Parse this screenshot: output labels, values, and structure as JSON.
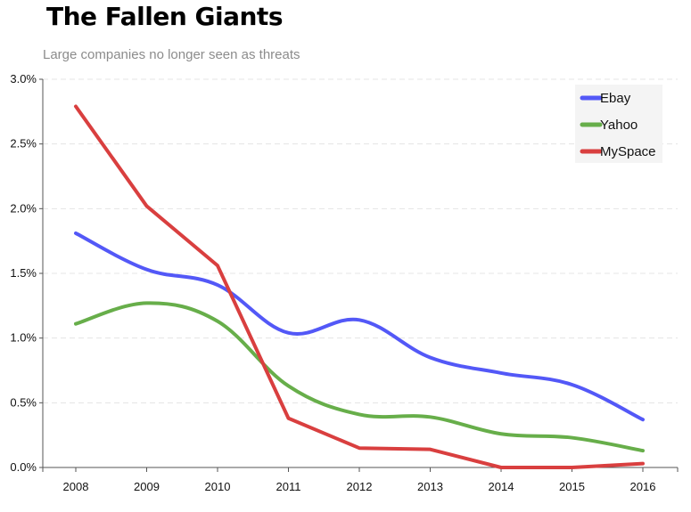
{
  "chart_data": {
    "type": "line",
    "title": "The Fallen Giants",
    "subtitle": "Large companies no longer seen as threats",
    "xlabel": "",
    "ylabel": "",
    "categories": [
      "2008",
      "2009",
      "2010",
      "2011",
      "2012",
      "2013",
      "2014",
      "2015",
      "2016"
    ],
    "ylim": [
      0,
      3.0
    ],
    "yticks": [
      "0.0%",
      "0.5%",
      "1.0%",
      "1.5%",
      "2.0%",
      "2.5%",
      "3.0%"
    ],
    "grid": true,
    "legend_position": "top-right",
    "series": [
      {
        "name": "Ebay",
        "color": "#5358f7",
        "smooth": true,
        "values": [
          1.81,
          1.53,
          1.41,
          1.04,
          1.14,
          0.85,
          0.73,
          0.64,
          0.37
        ]
      },
      {
        "name": "Yahoo",
        "color": "#67ae4a",
        "smooth": true,
        "values": [
          1.11,
          1.27,
          1.13,
          0.63,
          0.41,
          0.39,
          0.26,
          0.23,
          0.13
        ]
      },
      {
        "name": "MySpace",
        "color": "#d93f3f",
        "smooth": false,
        "values": [
          2.79,
          2.02,
          1.56,
          0.38,
          0.15,
          0.14,
          0.0,
          0.0,
          0.03
        ]
      }
    ]
  }
}
